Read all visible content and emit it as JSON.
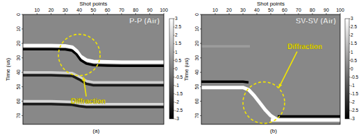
{
  "chart_data": [
    {
      "type": "line",
      "title": "P-P (Air)",
      "caption": "(a)",
      "x_label": "Shot points",
      "y_label": "Time (us)",
      "xlim": [
        0,
        100
      ],
      "ylim": [
        0,
        76
      ],
      "xticks": [
        10,
        20,
        30,
        40,
        50,
        60,
        70,
        80,
        90,
        100
      ],
      "yticks": [
        0,
        10,
        20,
        30,
        40,
        50,
        60,
        70
      ],
      "colorbar": {
        "range": [
          -3,
          3
        ],
        "ticks": [
          3,
          2.5,
          2,
          1.5,
          1,
          0.5,
          0,
          -0.5,
          -1,
          -1.5,
          -2,
          -2.5,
          -3
        ]
      },
      "annotations": [
        {
          "text": "Diffraction",
          "x": 40,
          "y": 28
        }
      ],
      "series": [
        {
          "color": "#ffffff",
          "x": [
            0,
            10,
            20,
            30,
            35,
            38,
            41,
            45,
            50,
            60,
            70,
            80,
            90,
            100
          ],
          "values": [
            21.5,
            21.5,
            21.5,
            21.7,
            22.5,
            25,
            29,
            31.5,
            32.5,
            32.8,
            33,
            33,
            33,
            33
          ]
        },
        {
          "color": "#000000",
          "x": [
            0,
            10,
            20,
            30,
            35,
            38,
            41,
            45,
            50,
            60,
            70,
            80,
            90,
            100
          ],
          "values": [
            24,
            24,
            24,
            24.2,
            25,
            27.5,
            31.5,
            34,
            35,
            35.3,
            35.5,
            35.5,
            35.5,
            35.5
          ]
        },
        {
          "color": "#d0d0d0",
          "x": [
            0,
            20,
            35,
            40,
            45,
            50,
            100
          ],
          "values": [
            40,
            40,
            40.5,
            43,
            46,
            47,
            47
          ]
        },
        {
          "color": "#1a1a1a",
          "x": [
            0,
            20,
            35,
            40,
            45,
            50,
            100
          ],
          "values": [
            42,
            42,
            42.5,
            45,
            48,
            49,
            49
          ]
        },
        {
          "color": "#d8d8d8",
          "x": [
            0,
            20,
            35,
            40,
            45,
            50,
            100
          ],
          "values": [
            60,
            60,
            60.5,
            61.5,
            62,
            62,
            62
          ]
        },
        {
          "color": "#1a1a1a",
          "x": [
            0,
            20,
            35,
            40,
            45,
            50,
            100
          ],
          "values": [
            62,
            62,
            62.5,
            63.5,
            64,
            64,
            64
          ]
        }
      ]
    },
    {
      "type": "line",
      "title": "SV-SV (Air)",
      "caption": "(b)",
      "x_label": "Shot points",
      "y_label": "Time (us)",
      "xlim": [
        0,
        100
      ],
      "ylim": [
        0,
        76
      ],
      "xticks": [
        10,
        20,
        30,
        40,
        50,
        60,
        70,
        80,
        90,
        100
      ],
      "yticks": [
        0,
        10,
        20,
        30,
        40,
        50,
        60,
        70
      ],
      "colorbar": {
        "range": [
          -3,
          3
        ],
        "ticks": [
          3,
          2.5,
          2,
          1.5,
          1,
          0.5,
          0,
          -0.5,
          -1,
          -1.5,
          -2,
          -2.5,
          -3
        ]
      },
      "annotations": [
        {
          "text": "Diffraction",
          "x": 45,
          "y": 61
        }
      ],
      "series": [
        {
          "color": "#9c9c9c",
          "x": [
            0,
            10,
            20,
            30,
            35
          ],
          "values": [
            22,
            22,
            22,
            22,
            22
          ]
        },
        {
          "color": "#000000",
          "x": [
            0,
            10,
            20,
            30,
            34
          ],
          "values": [
            46.5,
            46.5,
            46.5,
            46.5,
            47
          ]
        },
        {
          "color": "#ffffff",
          "x": [
            0,
            10,
            20,
            30,
            34,
            38,
            42,
            46,
            50,
            55
          ],
          "values": [
            50.5,
            50.5,
            50.5,
            50.5,
            52,
            56,
            61,
            66,
            70,
            73
          ]
        },
        {
          "color": "#000000",
          "x": [
            55,
            60,
            70,
            80,
            90,
            100
          ],
          "values": [
            70.5,
            70.5,
            70.5,
            70.5,
            70.5,
            70.5
          ]
        },
        {
          "color": "#ffffff",
          "x": [
            50,
            60,
            70,
            80,
            90,
            100
          ],
          "values": [
            73,
            73,
            73,
            73,
            73,
            73
          ]
        }
      ]
    }
  ]
}
